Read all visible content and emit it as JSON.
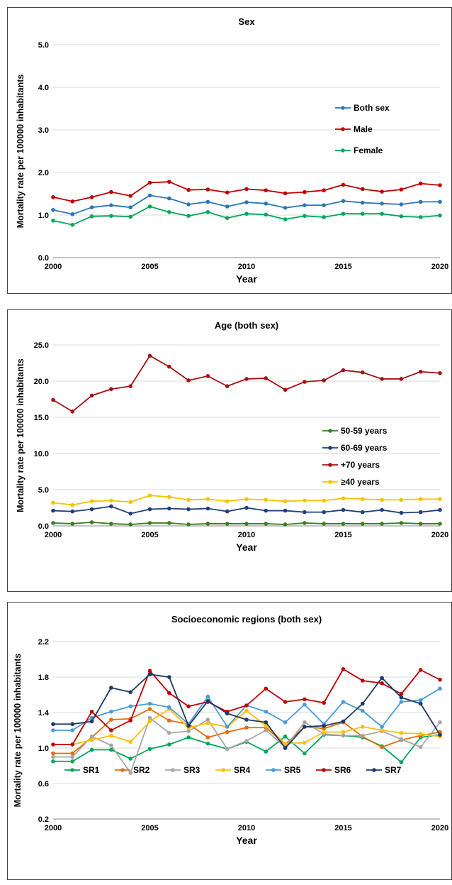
{
  "chart_data": [
    {
      "type": "line",
      "title": "Sex",
      "xlabel": "Year",
      "ylabel": "Mortality rate per 100000 inhabitants",
      "xlim": [
        2000,
        2020
      ],
      "ylim": [
        0,
        5
      ],
      "x_ticks": [
        2000,
        2005,
        2010,
        2015,
        2020
      ],
      "y_ticks": [
        "0.0",
        "1.0",
        "2.0",
        "3.0",
        "4.0",
        "5.0"
      ],
      "grid": true,
      "legend_position": "right",
      "x": [
        2000,
        2001,
        2002,
        2003,
        2004,
        2005,
        2006,
        2007,
        2008,
        2009,
        2010,
        2011,
        2012,
        2013,
        2014,
        2015,
        2016,
        2017,
        2018,
        2019,
        2020
      ],
      "series": [
        {
          "name": "Both sex",
          "color": "#2e75b6",
          "values": [
            1.12,
            1.02,
            1.18,
            1.23,
            1.18,
            1.46,
            1.39,
            1.25,
            1.31,
            1.2,
            1.3,
            1.27,
            1.17,
            1.23,
            1.23,
            1.33,
            1.29,
            1.27,
            1.25,
            1.31,
            1.31
          ]
        },
        {
          "name": "Male",
          "color": "#c00000",
          "values": [
            1.42,
            1.32,
            1.42,
            1.54,
            1.45,
            1.76,
            1.78,
            1.59,
            1.6,
            1.53,
            1.61,
            1.58,
            1.51,
            1.54,
            1.58,
            1.71,
            1.61,
            1.55,
            1.6,
            1.74,
            1.7
          ]
        },
        {
          "name": "Female",
          "color": "#00a65a",
          "values": [
            0.87,
            0.77,
            0.97,
            0.98,
            0.96,
            1.2,
            1.07,
            0.98,
            1.07,
            0.93,
            1.03,
            1.01,
            0.9,
            0.98,
            0.95,
            1.03,
            1.03,
            1.03,
            0.97,
            0.95,
            0.99
          ]
        }
      ]
    },
    {
      "type": "line",
      "title": "Age (both sex)",
      "xlabel": "Year",
      "ylabel": "Mortality rate per 100000 inhabitants",
      "xlim": [
        2000,
        2020
      ],
      "ylim": [
        0,
        25
      ],
      "x_ticks": [
        2000,
        2005,
        2010,
        2015,
        2020
      ],
      "y_ticks": [
        "0.0",
        "5.0",
        "10.0",
        "15.0",
        "20.0",
        "25.0"
      ],
      "grid": true,
      "legend_position": "right",
      "x": [
        2000,
        2001,
        2002,
        2003,
        2004,
        2005,
        2006,
        2007,
        2008,
        2009,
        2010,
        2011,
        2012,
        2013,
        2014,
        2015,
        2016,
        2017,
        2018,
        2019,
        2020
      ],
      "series": [
        {
          "name": "50-59 years",
          "color": "#3a7d22",
          "values": [
            0.4,
            0.3,
            0.5,
            0.3,
            0.2,
            0.4,
            0.4,
            0.2,
            0.3,
            0.3,
            0.3,
            0.3,
            0.2,
            0.4,
            0.3,
            0.3,
            0.3,
            0.3,
            0.4,
            0.3,
            0.3
          ]
        },
        {
          "name": "60-69 years",
          "color": "#1f3f7a",
          "values": [
            2.1,
            2.0,
            2.3,
            2.7,
            1.7,
            2.3,
            2.4,
            2.3,
            2.4,
            2.0,
            2.5,
            2.1,
            2.1,
            1.9,
            1.9,
            2.2,
            1.9,
            2.2,
            1.8,
            1.9,
            2.2
          ]
        },
        {
          "name": "+70 years",
          "color": "#a50f15",
          "values": [
            17.4,
            15.8,
            18.0,
            18.9,
            19.3,
            23.5,
            22.0,
            20.1,
            20.7,
            19.3,
            20.3,
            20.4,
            18.8,
            19.9,
            20.1,
            21.5,
            21.2,
            20.3,
            20.3,
            21.3,
            21.1
          ]
        },
        {
          "name": "≥40 years",
          "color": "#f5c400",
          "values": [
            3.2,
            2.9,
            3.4,
            3.5,
            3.3,
            4.2,
            4.0,
            3.6,
            3.7,
            3.4,
            3.7,
            3.6,
            3.4,
            3.5,
            3.5,
            3.8,
            3.7,
            3.6,
            3.6,
            3.7,
            3.7
          ]
        }
      ]
    },
    {
      "type": "line",
      "title": "Socioeconomic regions (both sex)",
      "xlabel": "Year",
      "ylabel": "Mortality rate per 100000 inhabitants",
      "xlim": [
        2000,
        2020
      ],
      "ylim": [
        0.2,
        2.2
      ],
      "x_ticks": [
        2000,
        2005,
        2010,
        2015,
        2020
      ],
      "y_ticks": [
        "0.2",
        "0.6",
        "1.0",
        "1.4",
        "1.8",
        "2.2"
      ],
      "grid": true,
      "legend_position": "bottom",
      "x": [
        2000,
        2001,
        2002,
        2003,
        2004,
        2005,
        2006,
        2007,
        2008,
        2009,
        2010,
        2011,
        2012,
        2013,
        2014,
        2015,
        2016,
        2017,
        2018,
        2019,
        2020
      ],
      "series": [
        {
          "name": "SR1",
          "color": "#00a65a",
          "values": [
            0.85,
            0.85,
            0.98,
            0.98,
            0.88,
            0.99,
            1.04,
            1.12,
            1.05,
            0.99,
            1.07,
            0.96,
            1.13,
            0.94,
            1.15,
            1.14,
            1.12,
            1.02,
            0.84,
            1.12,
            1.15
          ]
        },
        {
          "name": "SR2",
          "color": "#e46c0a",
          "values": [
            0.94,
            0.94,
            1.12,
            1.32,
            1.33,
            1.44,
            1.31,
            1.27,
            1.12,
            1.18,
            1.23,
            1.23,
            1.04,
            1.24,
            1.22,
            1.29,
            1.13,
            1.01,
            1.09,
            1.14,
            1.18
          ]
        },
        {
          "name": "SR3",
          "color": "#a6a6a6",
          "values": [
            0.9,
            0.9,
            1.13,
            1.03,
            0.72,
            1.34,
            1.17,
            1.19,
            1.32,
            0.99,
            1.08,
            1.2,
            1.01,
            1.29,
            1.16,
            1.14,
            1.14,
            1.19,
            1.1,
            1.01,
            1.29
          ]
        },
        {
          "name": "SR4",
          "color": "#ffc000",
          "values": [
            1.04,
            1.04,
            1.09,
            1.14,
            1.07,
            1.3,
            1.44,
            1.23,
            1.28,
            1.24,
            1.42,
            1.25,
            1.05,
            1.06,
            1.18,
            1.18,
            1.24,
            1.2,
            1.17,
            1.16,
            1.13
          ]
        },
        {
          "name": "SR5",
          "color": "#4a9bd1",
          "values": [
            1.2,
            1.2,
            1.34,
            1.41,
            1.47,
            1.5,
            1.46,
            1.27,
            1.58,
            1.24,
            1.48,
            1.41,
            1.29,
            1.49,
            1.27,
            1.52,
            1.42,
            1.24,
            1.52,
            1.54,
            1.67
          ]
        },
        {
          "name": "SR6",
          "color": "#c00000",
          "values": [
            1.04,
            1.04,
            1.41,
            1.2,
            1.31,
            1.87,
            1.62,
            1.47,
            1.52,
            1.41,
            1.48,
            1.67,
            1.52,
            1.55,
            1.51,
            1.89,
            1.76,
            1.73,
            1.61,
            1.88,
            1.77
          ]
        },
        {
          "name": "SR7",
          "color": "#1f3864",
          "values": [
            1.27,
            1.27,
            1.3,
            1.68,
            1.63,
            1.83,
            1.8,
            1.25,
            1.53,
            1.39,
            1.32,
            1.29,
            1.0,
            1.24,
            1.25,
            1.3,
            1.5,
            1.79,
            1.57,
            1.5,
            1.15
          ]
        }
      ]
    }
  ]
}
